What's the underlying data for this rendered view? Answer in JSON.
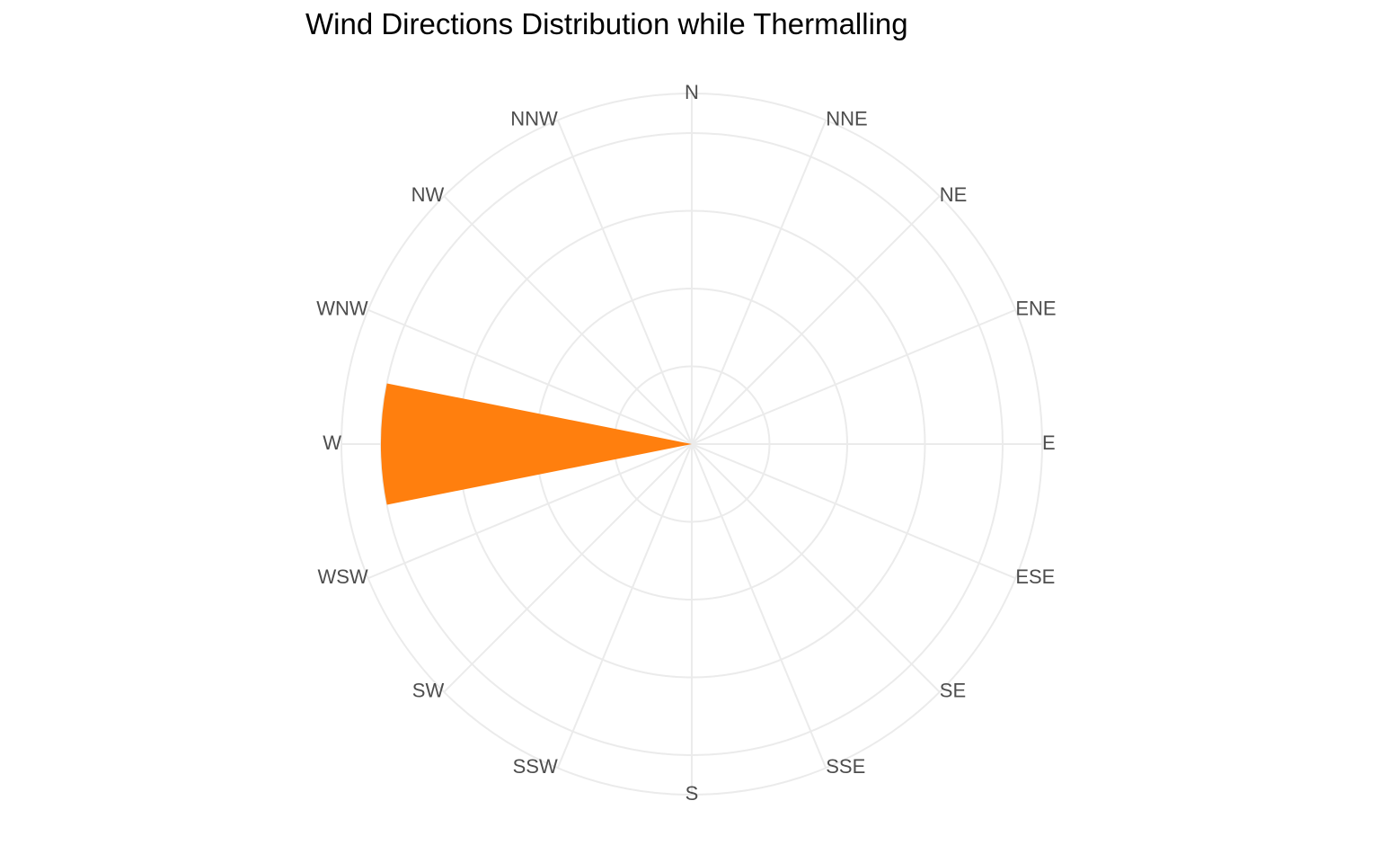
{
  "chart_data": {
    "type": "bar",
    "coord": "polar",
    "title": "Wind Directions Distribution while Thermalling",
    "categories": [
      "N",
      "NNE",
      "NE",
      "ENE",
      "E",
      "ESE",
      "SE",
      "SSE",
      "S",
      "SSW",
      "SW",
      "WSW",
      "W",
      "WNW",
      "NW",
      "NNW"
    ],
    "values": [
      0,
      0,
      0,
      0,
      0,
      0,
      0,
      0,
      0,
      0,
      0,
      0,
      1,
      0,
      0,
      0
    ],
    "rlim": [
      0,
      1
    ],
    "radial_gridlines": 4,
    "grid": true,
    "legend": "none",
    "bar_color": "#ff7f0e",
    "grid_color": "#ebebeb",
    "label_color": "#4d4d4d"
  }
}
